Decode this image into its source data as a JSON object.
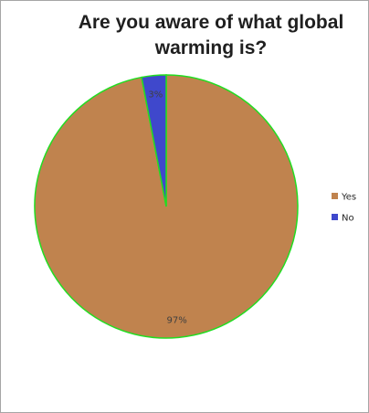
{
  "chart_data": {
    "type": "pie",
    "title": "Are you aware of what global warming is?",
    "categories": [
      "Yes",
      "No"
    ],
    "values": [
      97,
      3
    ],
    "data_labels": [
      "97%",
      "3%"
    ],
    "colors": [
      "#c0834e",
      "#3f48cc"
    ],
    "slice_border_color": "#22dd22",
    "legend_position": "right"
  }
}
